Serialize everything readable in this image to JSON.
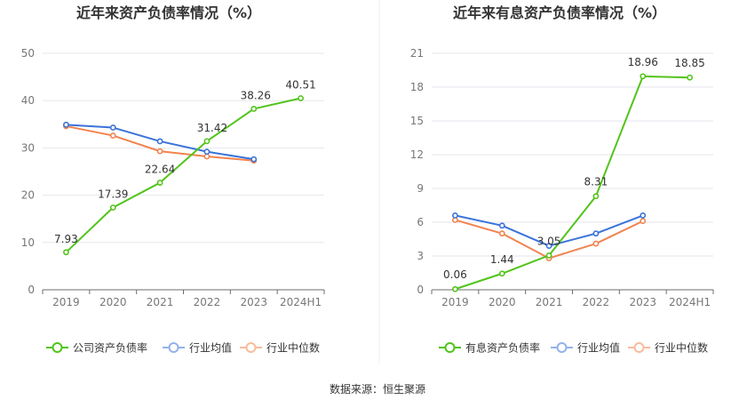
{
  "source_text": "数据来源：恒生聚源",
  "chart_data": [
    {
      "type": "line",
      "title": "近年来资产负债率情况（%）",
      "xlabel": "",
      "ylabel": "",
      "categories": [
        "2019",
        "2020",
        "2021",
        "2022",
        "2023",
        "2024H1"
      ],
      "ylim": [
        0,
        50
      ],
      "yticks": [
        0,
        10,
        20,
        30,
        40,
        50
      ],
      "grid": true,
      "legend_position": "bottom",
      "series": [
        {
          "name": "公司资产负债率",
          "color": "#52c41a",
          "values": [
            7.93,
            17.39,
            22.64,
            31.42,
            38.26,
            40.51
          ],
          "labels": [
            "7.93",
            "17.39",
            "22.64",
            "31.42",
            "38.26",
            "40.51"
          ],
          "show_labels": true
        },
        {
          "name": "行业均值",
          "color": "#3b73d9",
          "values": [
            34.9,
            34.3,
            31.4,
            29.2,
            27.6,
            null
          ],
          "labels": [],
          "show_labels": false
        },
        {
          "name": "行业中位数",
          "color": "#f2834f",
          "values": [
            34.6,
            32.6,
            29.3,
            28.2,
            27.3,
            null
          ],
          "labels": [],
          "show_labels": false
        }
      ]
    },
    {
      "type": "line",
      "title": "近年来有息资产负债率情况（%）",
      "xlabel": "",
      "ylabel": "",
      "categories": [
        "2019",
        "2020",
        "2021",
        "2022",
        "2023",
        "2024H1"
      ],
      "ylim": [
        0,
        21
      ],
      "yticks": [
        0,
        3,
        6,
        9,
        12,
        15,
        18,
        21
      ],
      "grid": true,
      "legend_position": "bottom",
      "series": [
        {
          "name": "有息资产负债率",
          "color": "#52c41a",
          "values": [
            0.06,
            1.44,
            3.05,
            8.31,
            18.96,
            18.85
          ],
          "labels": [
            "0.06",
            "1.44",
            "3.05",
            "8.31",
            "18.96",
            "18.85"
          ],
          "show_labels": true
        },
        {
          "name": "行业均值",
          "color": "#3b73d9",
          "values": [
            6.6,
            5.7,
            3.9,
            5.0,
            6.6,
            null
          ],
          "labels": [],
          "show_labels": false
        },
        {
          "name": "行业中位数",
          "color": "#f2834f",
          "values": [
            6.2,
            5.0,
            2.8,
            4.1,
            6.1,
            null
          ],
          "labels": [],
          "show_labels": false
        }
      ]
    }
  ]
}
